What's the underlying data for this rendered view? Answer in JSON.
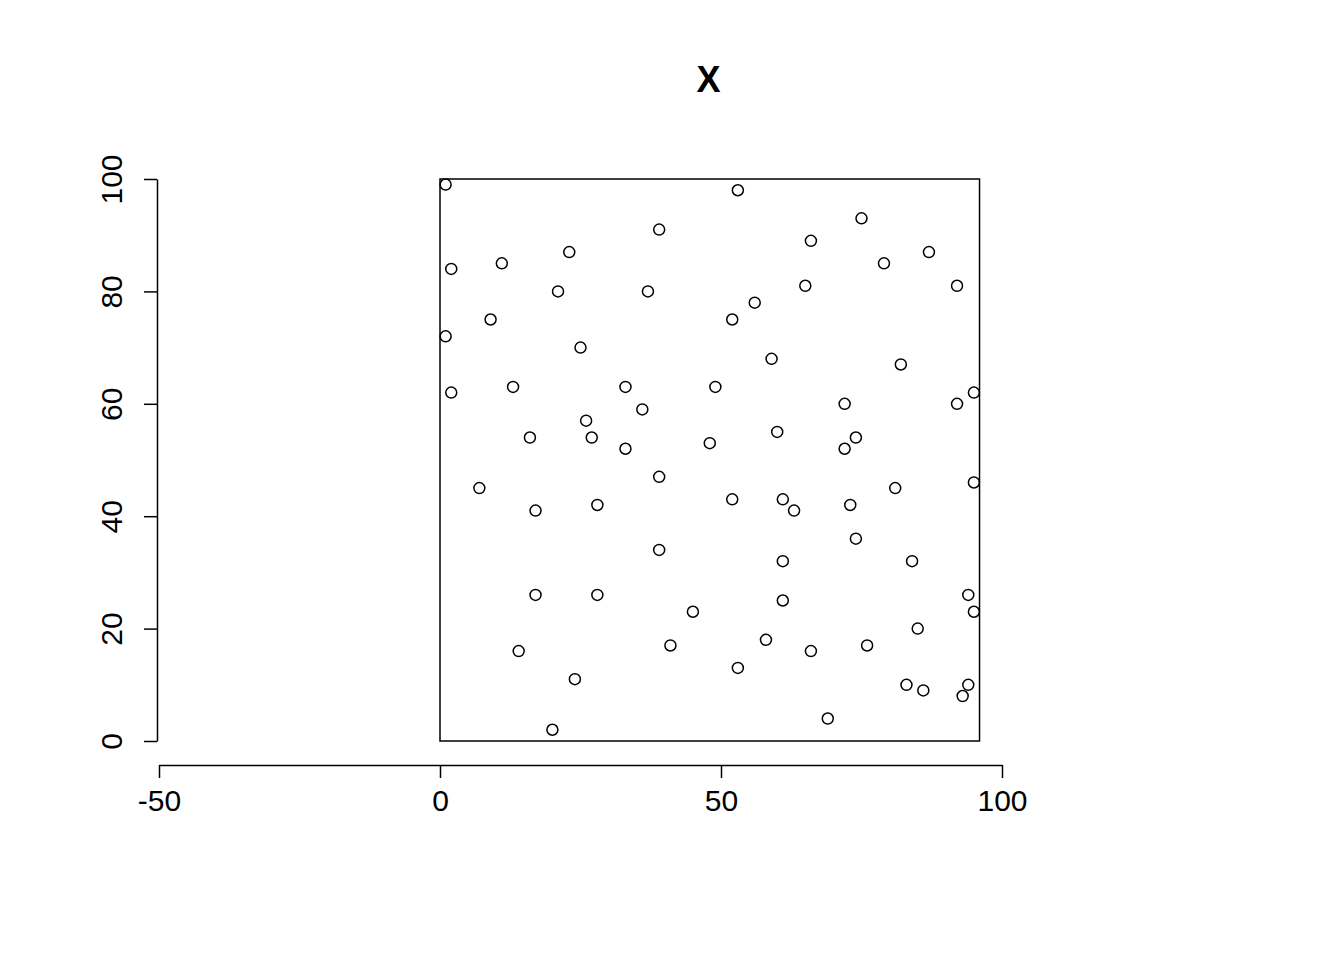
{
  "chart_data": {
    "type": "scatter",
    "title": "X",
    "x": [
      1,
      53,
      75,
      39,
      66,
      87,
      23,
      2,
      11,
      79,
      21,
      37,
      65,
      92,
      56,
      9,
      52,
      1,
      25,
      59,
      82,
      13,
      33,
      49,
      2,
      95,
      36,
      72,
      92,
      26,
      60,
      16,
      27,
      74,
      48,
      33,
      72,
      39,
      95,
      7,
      81,
      52,
      61,
      28,
      73,
      17,
      63,
      74,
      39,
      61,
      84,
      17,
      28,
      94,
      61,
      45,
      95,
      85,
      58,
      41,
      76,
      14,
      66,
      53,
      24,
      83,
      94,
      86,
      93,
      69,
      20
    ],
    "values": [
      99,
      98,
      93,
      91,
      89,
      87,
      87,
      84,
      85,
      85,
      80,
      80,
      81,
      81,
      78,
      75,
      75,
      72,
      70,
      68,
      67,
      63,
      63,
      63,
      62,
      62,
      59,
      60,
      60,
      57,
      55,
      54,
      54,
      54,
      53,
      52,
      52,
      47,
      46,
      45,
      45,
      43,
      43,
      42,
      42,
      41,
      41,
      36,
      34,
      32,
      32,
      26,
      26,
      26,
      25,
      23,
      23,
      20,
      18,
      17,
      17,
      16,
      16,
      13,
      11,
      10,
      10,
      9,
      8,
      4,
      2
    ],
    "window_x": [
      0,
      96
    ],
    "window_y": [
      0,
      100
    ],
    "marker": "open-circle",
    "xlim": [
      -50,
      100
    ],
    "xticks": [
      -50,
      0,
      50,
      100
    ],
    "ylim": [
      0,
      100
    ],
    "yticks": [
      0,
      20,
      40,
      60,
      80,
      100
    ],
    "grid": false
  }
}
